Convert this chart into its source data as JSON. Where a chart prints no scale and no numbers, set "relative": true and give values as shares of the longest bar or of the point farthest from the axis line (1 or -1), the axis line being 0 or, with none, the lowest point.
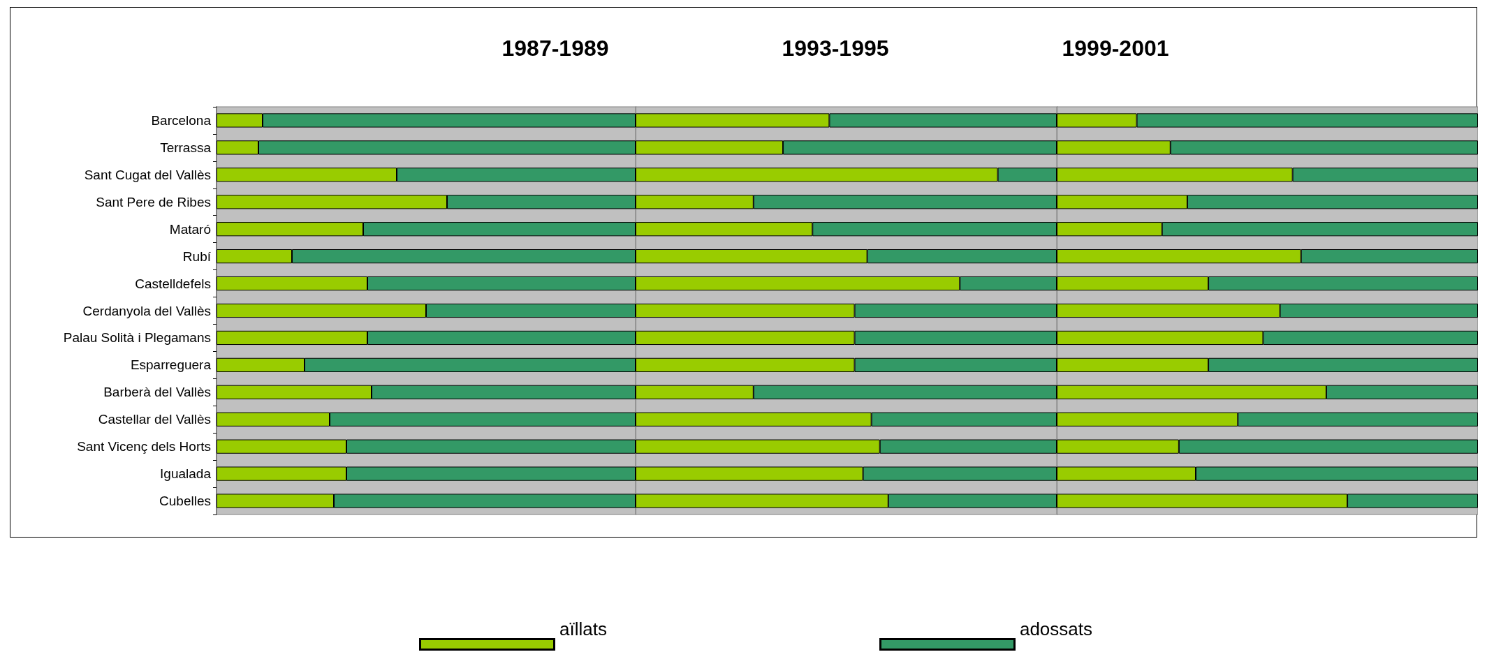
{
  "chart_data": [
    {
      "type": "bar",
      "title": "1987-1989",
      "orientation": "horizontal",
      "stacked": true,
      "relative": true,
      "tick_labels": "y",
      "legend": "bottom",
      "categories": [
        "Barcelona",
        "Terrassa",
        "Sant Cugat del Vallès",
        "Sant Pere de Ribes",
        "Mataró",
        "Rubí",
        "Castelldefels",
        "Cerdanyola del Vallès",
        "Palau Solità i Plegamans",
        "Esparreguera",
        "Barberà del Vallès",
        "Castellar del Vallès",
        "Sant Vicenç dels Horts",
        "Igualada",
        "Cubelles"
      ],
      "series": [
        {
          "name": "aïllats",
          "color": "#99cc00",
          "values": [
            0.11,
            0.1,
            0.43,
            0.55,
            0.35,
            0.18,
            0.36,
            0.5,
            0.36,
            0.21,
            0.37,
            0.27,
            0.31,
            0.31,
            0.28
          ]
        },
        {
          "name": "adossats",
          "color": "#339966",
          "values": [
            0.89,
            0.9,
            0.57,
            0.45,
            0.65,
            0.82,
            0.64,
            0.5,
            0.64,
            0.79,
            0.63,
            0.73,
            0.69,
            0.69,
            0.72
          ]
        }
      ]
    },
    {
      "type": "bar",
      "title": "1993-1995",
      "orientation": "horizontal",
      "stacked": true,
      "relative": true,
      "tick_labels": false,
      "categories": [
        null,
        null,
        null,
        null,
        null,
        null,
        null,
        null,
        null,
        null,
        null,
        null,
        null,
        null,
        null
      ],
      "series": [
        {
          "color": "#99cc00",
          "values": [
            0.46,
            0.35,
            0.86,
            0.28,
            0.42,
            0.55,
            0.77,
            0.52,
            0.52,
            0.52,
            0.28,
            0.56,
            0.58,
            0.54,
            0.6
          ]
        },
        {
          "color": "#339966",
          "values": [
            0.54,
            0.65,
            0.14,
            0.72,
            0.58,
            0.45,
            0.23,
            0.48,
            0.48,
            0.48,
            0.72,
            0.44,
            0.42,
            0.46,
            0.4
          ]
        }
      ]
    },
    {
      "type": "bar",
      "title": "1999-2001",
      "orientation": "horizontal",
      "stacked": true,
      "relative": true,
      "tick_labels": false,
      "categories": [
        null,
        null,
        null,
        null,
        null,
        null,
        null,
        null,
        null,
        null,
        null,
        null,
        null,
        null,
        null
      ],
      "series": [
        {
          "color": "#99cc00",
          "values": [
            0.19,
            0.27,
            0.56,
            0.31,
            0.25,
            0.58,
            0.36,
            0.53,
            0.49,
            0.36,
            0.64,
            0.43,
            0.29,
            0.33,
            0.69
          ]
        },
        {
          "color": "#339966",
          "values": [
            0.81,
            0.73,
            0.44,
            0.69,
            0.75,
            0.42,
            0.64,
            0.47,
            0.51,
            0.64,
            0.36,
            0.57,
            0.71,
            0.67,
            0.31
          ]
        }
      ]
    }
  ]
}
